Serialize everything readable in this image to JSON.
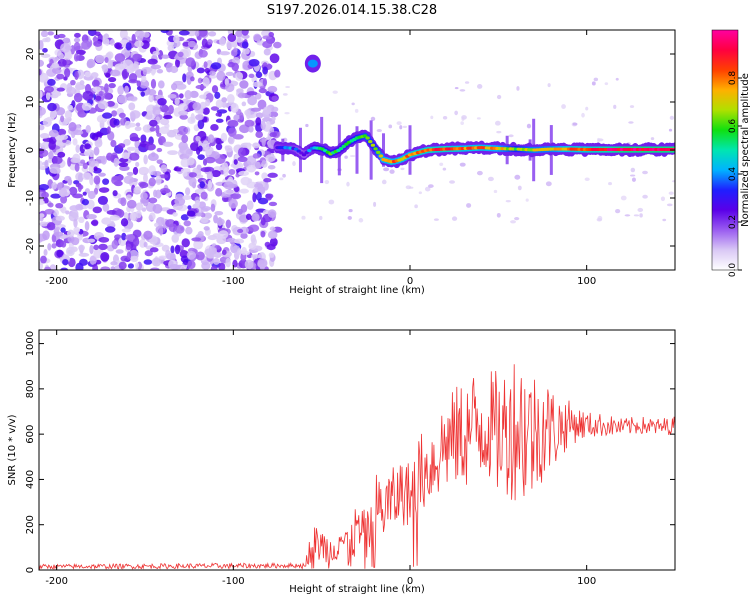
{
  "title": "S197.2026.014.15.38.C28",
  "chart_data": [
    {
      "type": "heatmap",
      "xlabel": "Height of straight line (km)",
      "ylabel": "Frequency (Hz)",
      "xlim": [
        -210,
        150
      ],
      "ylim": [
        -25,
        25
      ],
      "xticks": [
        -200,
        -100,
        0,
        100
      ],
      "yticks": [
        -20,
        -10,
        0,
        10,
        20
      ],
      "colorbar": {
        "label": "Normalized spectral amplitude",
        "range": [
          0,
          1
        ],
        "ticks": [
          "0.0",
          "0.2",
          "0.4",
          "0.6",
          "0.8"
        ],
        "tick_values": [
          0,
          0.2,
          0.4,
          0.6,
          0.8
        ],
        "colors": [
          "#ffffff",
          "#d9c8f5",
          "#9a5cf0",
          "#5a00e8",
          "#1f1fff",
          "#00b3ff",
          "#00e6b0",
          "#10e010",
          "#b0e000",
          "#ffb000",
          "#ff4000",
          "#ff0040",
          "#ff00a0"
        ]
      },
      "description_regions": {
        "noise_region_km": [
          -210,
          -75
        ],
        "signal_onset_km": -75,
        "burst_feature": {
          "x_km": -55,
          "freq_hz": 18,
          "amplitude": 0.4
        },
        "signal_trace": {
          "x": [
            -75,
            -70,
            -65,
            -60,
            -55,
            -50,
            -45,
            -40,
            -35,
            -30,
            -25,
            -20,
            -15,
            -10,
            -5,
            0,
            10,
            20,
            30,
            40,
            50,
            60,
            70,
            80,
            90,
            100,
            110,
            120,
            130,
            140,
            150
          ],
          "freq": [
            0.5,
            0.5,
            0.3,
            -1,
            0.5,
            0.3,
            -0.8,
            0,
            1.5,
            2.5,
            3,
            0.5,
            -2,
            -2.5,
            -2,
            -1,
            0,
            0.2,
            0.3,
            0.5,
            0.3,
            0.2,
            0,
            0.2,
            0.2,
            0.1,
            0.1,
            0.1,
            0.1,
            0.1,
            0.1
          ],
          "amplitude": [
            0.35,
            0.4,
            0.35,
            0.3,
            0.45,
            0.55,
            0.6,
            0.5,
            0.55,
            0.6,
            0.65,
            0.6,
            0.75,
            0.8,
            0.75,
            0.8,
            0.85,
            0.85,
            0.8,
            0.8,
            0.75,
            0.6,
            0.7,
            0.7,
            0.8,
            0.85,
            0.9,
            0.95,
            0.95,
            0.95,
            0.95
          ]
        }
      }
    },
    {
      "type": "line",
      "xlabel": "Height of straight line (km)",
      "ylabel": "SNR (10 * v/v)",
      "xlim": [
        -210,
        150
      ],
      "ylim": [
        0,
        1060
      ],
      "xticks": [
        -200,
        -100,
        0,
        100
      ],
      "yticks": [
        0,
        200,
        400,
        600,
        800,
        1000
      ],
      "series": [
        {
          "name": "SNR",
          "color": "#ee3333",
          "envelope_x": [
            -210,
            -100,
            -60,
            -55,
            -50,
            -45,
            -40,
            -35,
            -30,
            -25,
            -20,
            -15,
            -10,
            -5,
            0,
            5,
            10,
            15,
            20,
            25,
            30,
            35,
            40,
            45,
            50,
            55,
            60,
            65,
            70,
            75,
            80,
            85,
            90,
            100,
            110,
            120,
            130,
            140,
            150
          ],
          "envelope_mean": [
            15,
            18,
            20,
            120,
            110,
            80,
            150,
            100,
            180,
            140,
            250,
            280,
            300,
            350,
            330,
            420,
            450,
            500,
            560,
            580,
            600,
            620,
            650,
            640,
            600,
            620,
            650,
            620,
            600,
            640,
            620,
            630,
            650,
            640,
            640,
            630,
            640,
            630,
            640
          ],
          "envelope_spread": [
            10,
            12,
            10,
            80,
            80,
            80,
            100,
            100,
            120,
            120,
            180,
            160,
            150,
            150,
            150,
            180,
            180,
            200,
            220,
            220,
            250,
            260,
            280,
            250,
            280,
            300,
            350,
            350,
            300,
            250,
            200,
            150,
            100,
            60,
            50,
            40,
            40,
            40,
            40
          ]
        }
      ]
    }
  ]
}
